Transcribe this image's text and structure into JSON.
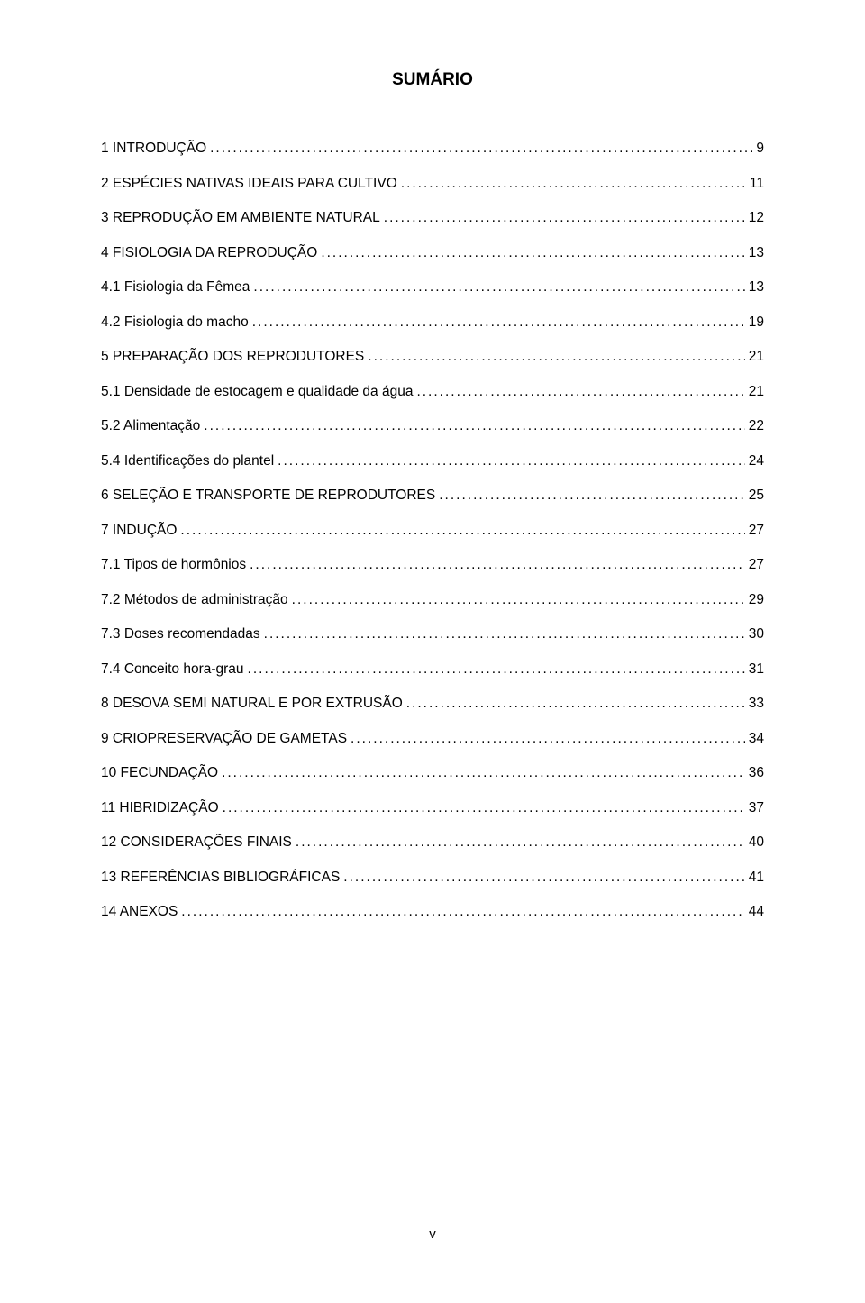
{
  "title": "SUMÁRIO",
  "footer": "v",
  "toc_text_color": "#000000",
  "background_color": "#ffffff",
  "toc": [
    {
      "label": "1 INTRODUÇÃO",
      "page": "9"
    },
    {
      "label": "2 ESPÉCIES NATIVAS IDEAIS PARA CULTIVO",
      "page": "11"
    },
    {
      "label": "3 REPRODUÇÃO EM AMBIENTE NATURAL",
      "page": "12"
    },
    {
      "label": "4 FISIOLOGIA DA REPRODUÇÃO",
      "page": "13"
    },
    {
      "label": "4.1 Fisiologia da Fêmea",
      "page": "13"
    },
    {
      "label": "4.2 Fisiologia do macho",
      "page": "19"
    },
    {
      "label": "5 PREPARAÇÃO DOS REPRODUTORES",
      "page": "21"
    },
    {
      "label": "5.1 Densidade de estocagem e qualidade da água",
      "page": "21"
    },
    {
      "label": "5.2 Alimentação",
      "page": "22"
    },
    {
      "label": "5.4 Identificações do plantel",
      "page": "24"
    },
    {
      "label": "6 SELEÇÃO E TRANSPORTE DE REPRODUTORES",
      "page": "25"
    },
    {
      "label": "7 INDUÇÃO",
      "page": "27"
    },
    {
      "label": "7.1 Tipos de hormônios",
      "page": "27"
    },
    {
      "label": "7.2 Métodos de administração",
      "page": "29"
    },
    {
      "label": "7.3 Doses recomendadas",
      "page": "30"
    },
    {
      "label": "7.4 Conceito hora-grau",
      "page": "31"
    },
    {
      "label": "8 DESOVA SEMI NATURAL E POR EXTRUSÃO",
      "page": "33"
    },
    {
      "label": "9 CRIOPRESERVAÇÃO DE GAMETAS",
      "page": "34"
    },
    {
      "label": "10 FECUNDAÇÃO",
      "page": "36"
    },
    {
      "label": "11 HIBRIDIZAÇÃO",
      "page": "37"
    },
    {
      "label": "12 CONSIDERAÇÕES FINAIS",
      "page": "40"
    },
    {
      "label": "13 REFERÊNCIAS BIBLIOGRÁFICAS",
      "page": "41"
    },
    {
      "label": "14 ANEXOS",
      "page": "44"
    }
  ]
}
